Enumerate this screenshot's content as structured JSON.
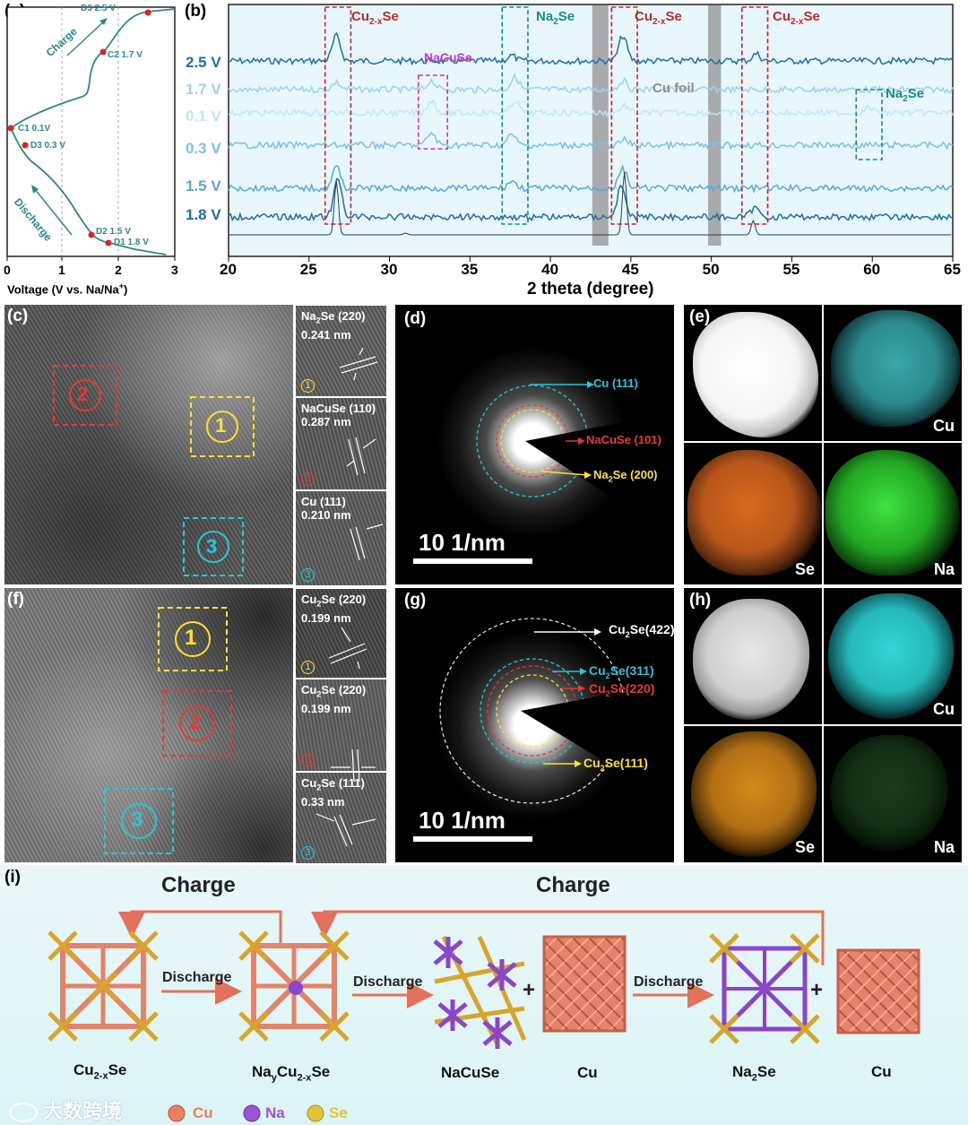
{
  "panels": {
    "a": "(a)",
    "b": "(b)",
    "c": "(c)",
    "d": "(d)",
    "e": "(e)",
    "f": "(f)",
    "g": "(g)",
    "h": "(h)",
    "i": "(i)"
  },
  "panel_a": {
    "xlabel": "Voltage (V vs. Na/Na",
    "xlabel_sup": "+",
    "xlabel_end": ")",
    "xticks": [
      "0",
      "1",
      "2",
      "3"
    ],
    "charge": "Charge",
    "discharge": "Discharge",
    "points": [
      {
        "label": "D3 2.5 V",
        "v": 2.5
      },
      {
        "label": "C2 1.7 V",
        "v": 1.7
      },
      {
        "label": "C1 0.1V",
        "v": 0.1
      },
      {
        "label": "D3 0.3 V",
        "v": 0.3
      },
      {
        "label": "D2 1.5 V",
        "v": 1.5
      },
      {
        "label": "D1 1.8 V",
        "v": 1.8
      }
    ]
  },
  "chart_data": {
    "type": "line",
    "xlabel": "2 theta (degree)",
    "xlim": [
      20,
      65
    ],
    "xticks": [
      "20",
      "25",
      "30",
      "35",
      "40",
      "45",
      "50",
      "55",
      "60",
      "65"
    ],
    "series": [
      {
        "name": "2.5 V",
        "color": "#1f6fa6"
      },
      {
        "name": "1.7 V",
        "color": "#9dd3ee"
      },
      {
        "name": "0.1 V",
        "color": "#c2e6f6"
      },
      {
        "name": "0.3 V",
        "color": "#7fc0e6"
      },
      {
        "name": "1.5 V",
        "color": "#5aa8d8"
      },
      {
        "name": "1.8 V",
        "color": "#1f6fa6"
      }
    ],
    "annotations": {
      "cu2xse": "Cu",
      "cu2xse_sub": "2-x",
      "cu2xse_end": "Se",
      "na2se_a": "Na",
      "na2se_sub": "2",
      "na2se_end": "Se",
      "nacuse": "NaCuSe",
      "cufoil": "Cu foil"
    }
  },
  "panel_c": {
    "insets": [
      {
        "title": "Na",
        "sub": "2",
        "title_end": "Se (220)",
        "d": "0.241 nm",
        "num": "1"
      },
      {
        "title": "NaCuSe (110)",
        "sub": "",
        "title_end": "",
        "d": "0.287 nm",
        "num": "2"
      },
      {
        "title": "Cu (111)",
        "sub": "",
        "title_end": "",
        "d": "0.210 nm",
        "num": "3"
      }
    ],
    "regions": [
      "1",
      "2",
      "3"
    ]
  },
  "panel_d": {
    "rings": [
      "Cu (111)",
      "NaCuSe (101)",
      "Na2Se (200)"
    ],
    "ring_3a": "Na",
    "ring_3s": "2",
    "ring_3b": "Se (200)",
    "scale": "10 1/nm"
  },
  "panel_e": {
    "maps": [
      "",
      "Cu",
      "Se",
      "Na"
    ]
  },
  "panel_f": {
    "insets": [
      {
        "title": "Cu",
        "sub": "2",
        "title_end": "Se (220)",
        "d": "0.199 nm",
        "num": "1"
      },
      {
        "title": "Cu",
        "sub": "2",
        "title_end": "Se (220)",
        "d": "0.199 nm",
        "num": "2"
      },
      {
        "title": "Cu",
        "sub": "2",
        "title_end": "Se (111)",
        "d": "0.33 nm",
        "num": "3"
      }
    ],
    "regions": [
      "1",
      "2",
      "3"
    ]
  },
  "panel_g": {
    "rings": [
      {
        "a": "Cu",
        "s": "2",
        "b": "Se(422)"
      },
      {
        "a": "Cu",
        "s": "2",
        "b": "Se(311)"
      },
      {
        "a": "Cu",
        "s": "2",
        "b": "Se(220)"
      },
      {
        "a": "Cu",
        "s": "2",
        "b": "Se(111)"
      }
    ],
    "scale": "10 1/nm"
  },
  "panel_h": {
    "maps": [
      "",
      "Cu",
      "Se",
      "Na"
    ]
  },
  "scheme": {
    "charge1": "Charge",
    "charge2": "Charge",
    "discharge1": "Discharge",
    "discharge2": "Discharge",
    "discharge3": "Discharge",
    "plus": "+",
    "c1a": "Cu",
    "c1s": "2-x",
    "c1b": "Se",
    "c2a": "Na",
    "c2s1": "y",
    "c2b": "Cu",
    "c2s2": "2-x",
    "c2c": "Se",
    "c3": "NaCuSe",
    "c4": "Cu",
    "c5a": "Na",
    "c5s": "2",
    "c5b": "Se",
    "c6": "Cu",
    "legend": [
      "Cu",
      "Na",
      "Se"
    ],
    "legend_colors": [
      "#e8825e",
      "#9a55d6",
      "#e3c436"
    ],
    "watermark": "大数跨境"
  }
}
